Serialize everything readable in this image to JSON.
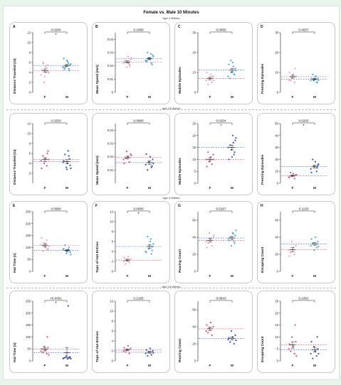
{
  "figure": {
    "title": "Female vs. Male 10 Minutes",
    "section_labels": [
      "Age 4 Weeks",
      "Age 24 Weeks",
      "Age 4 Weeks",
      "Age 24 Weeks"
    ],
    "colors": {
      "female": "#f29ab0",
      "male": "#4a9fd6",
      "female_dark": "#d6476b",
      "male_dark": "#3048a8",
      "mean_line_f": "#e8506f",
      "mean_line_m": "#3f6fd0"
    }
  },
  "chart_data": [
    {
      "type": "scatter",
      "panel": "A",
      "row": 0,
      "ylabel": "Distance Traveled (m)",
      "p": "0.0284",
      "star": true,
      "ylim": [
        0,
        12
      ],
      "yticks": [
        0,
        2,
        4,
        6,
        8,
        10,
        12
      ],
      "categories": [
        "F",
        "M"
      ],
      "series": [
        {
          "name": "F",
          "values": [
            3.5,
            4.2,
            4.8,
            5.1,
            2.0,
            6.0,
            4.5,
            3.9,
            5.5,
            4.0,
            3.2,
            5.8
          ]
        },
        {
          "name": "M",
          "values": [
            5.0,
            5.5,
            4.7,
            6.2,
            5.3,
            4.9,
            6.8,
            5.7,
            4.4,
            5.9,
            6.4,
            5.2,
            4.6,
            5.1
          ]
        }
      ]
    },
    {
      "type": "scatter",
      "panel": "B",
      "row": 0,
      "ylabel": "Mean Speed (m/s)",
      "p": "0.1058",
      "star": false,
      "ylim": [
        0,
        0.045
      ],
      "yticks": [
        0,
        0.01,
        0.02,
        0.03,
        0.04
      ],
      "categories": [
        "F",
        "M"
      ],
      "series": [
        {
          "name": "F",
          "values": [
            0.022,
            0.025,
            0.021,
            0.027,
            0.019,
            0.024,
            0.023,
            0.026,
            0.02,
            0.022
          ]
        },
        {
          "name": "M",
          "values": [
            0.024,
            0.028,
            0.022,
            0.026,
            0.025,
            0.03,
            0.023,
            0.027,
            0.021,
            0.029,
            0.025,
            0.026,
            0.024
          ]
        }
      ]
    },
    {
      "type": "scatter",
      "panel": "C",
      "row": 0,
      "ylabel": "Mobile Episodes",
      "p": "0.0959",
      "star": false,
      "ylim": [
        0,
        30
      ],
      "yticks": [
        0,
        10,
        20,
        30
      ],
      "categories": [
        "F",
        "M"
      ],
      "series": [
        {
          "name": "F",
          "values": [
            6,
            8,
            5,
            9,
            7,
            4,
            10,
            6,
            8
          ]
        },
        {
          "name": "M",
          "values": [
            8,
            12,
            9,
            15,
            10,
            7,
            14,
            11,
            9,
            13,
            10,
            16
          ]
        }
      ]
    },
    {
      "type": "scatter",
      "panel": "D",
      "row": 0,
      "ylabel": "Freezing Episodes",
      "p": "0.4637",
      "star": false,
      "ylim": [
        0,
        30
      ],
      "yticks": [
        0,
        10,
        20,
        30
      ],
      "categories": [
        "F",
        "M"
      ],
      "series": [
        {
          "name": "F",
          "values": [
            6,
            8,
            5,
            9,
            7,
            6,
            10,
            8,
            12
          ]
        },
        {
          "name": "M",
          "values": [
            6,
            7,
            5,
            8,
            6,
            9,
            7,
            6,
            5,
            8,
            7,
            6
          ]
        }
      ]
    },
    {
      "type": "scatter",
      "panel": "",
      "row": 1,
      "ylabel": "Distance Traveled (m)",
      "p": "0.3250",
      "star": false,
      "ylim": [
        0,
        12
      ],
      "yticks": [
        2,
        4,
        6,
        8,
        10,
        12
      ],
      "categories": [
        "F",
        "M"
      ],
      "series": [
        {
          "name": "F",
          "values": [
            4.5,
            6.5,
            3.5,
            5.0,
            4.0,
            5.5,
            3.0,
            4.8,
            6.0
          ]
        },
        {
          "name": "M",
          "values": [
            4.2,
            3.6,
            5.5,
            4.0,
            3.2,
            5.8,
            4.5,
            3.0,
            4.9,
            6.5,
            2.8
          ]
        }
      ]
    },
    {
      "type": "scatter",
      "panel": "",
      "row": 1,
      "ylabel": "Mean Speed (m/s)",
      "p": "0.0880",
      "star": false,
      "ylim": [
        0,
        0.045
      ],
      "yticks": [
        0.01,
        0.02,
        0.03,
        0.04
      ],
      "categories": [
        "F",
        "M"
      ],
      "series": [
        {
          "name": "F",
          "values": [
            0.018,
            0.022,
            0.016,
            0.02,
            0.024,
            0.019,
            0.015,
            0.021
          ]
        },
        {
          "name": "M",
          "values": [
            0.014,
            0.018,
            0.012,
            0.02,
            0.016,
            0.01,
            0.022,
            0.015,
            0.013
          ]
        }
      ]
    },
    {
      "type": "scatter",
      "panel": "",
      "row": 1,
      "ylabel": "Mobile Episodes",
      "p": "0.0254",
      "star": true,
      "ylim": [
        0,
        25
      ],
      "yticks": [
        0,
        5,
        10,
        15,
        20,
        25
      ],
      "categories": [
        "F",
        "M"
      ],
      "series": [
        {
          "name": "F",
          "values": [
            10,
            12,
            8,
            11,
            9,
            13,
            7,
            10
          ]
        },
        {
          "name": "M",
          "values": [
            15,
            18,
            12,
            20,
            14,
            16,
            10,
            19,
            13,
            17,
            11
          ]
        }
      ]
    },
    {
      "type": "scatter",
      "panel": "",
      "row": 1,
      "ylabel": "Freezing Episodes",
      "p": "0.0205",
      "star": true,
      "ylim": [
        0,
        50
      ],
      "yticks": [
        0,
        10,
        20,
        30,
        40,
        50
      ],
      "categories": [
        "F",
        "M"
      ],
      "series": [
        {
          "name": "F",
          "values": [
            5,
            7,
            4,
            8,
            6,
            9,
            5,
            7
          ]
        },
        {
          "name": "M",
          "values": [
            12,
            15,
            10,
            18,
            14,
            20,
            9,
            16,
            13
          ]
        }
      ]
    },
    {
      "type": "scatter",
      "panel": "E",
      "row": 2,
      "ylabel": "Hut Time (s)",
      "p": "0.0990",
      "star": false,
      "ylim": [
        0,
        250
      ],
      "yticks": [
        0,
        50,
        100,
        150,
        200,
        250
      ],
      "categories": [
        "F",
        "M"
      ],
      "series": [
        {
          "name": "F",
          "values": [
            110,
            95,
            130,
            100,
            120,
            85,
            140,
            105,
            90,
            115
          ]
        },
        {
          "name": "M",
          "values": [
            90,
            80,
            100,
            85,
            75,
            110,
            95,
            70,
            88,
            92,
            82
          ]
        }
      ]
    },
    {
      "type": "scatter",
      "panel": "F",
      "row": 2,
      "ylabel": "Tops of Hut Entries",
      "p": "0.0066",
      "star": true,
      "ylim": [
        0,
        12
      ],
      "yticks": [
        0,
        2,
        4,
        6,
        8,
        10,
        12
      ],
      "categories": [
        "F",
        "M"
      ],
      "series": [
        {
          "name": "F",
          "values": [
            2.0,
            2.5,
            1.8,
            3.0,
            2.2,
            1.5,
            2.8
          ]
        },
        {
          "name": "M",
          "values": [
            4.0,
            5.0,
            3.5,
            6.0,
            4.5,
            7.0,
            3.8,
            5.5,
            4.2,
            6.5
          ]
        }
      ]
    },
    {
      "type": "scatter",
      "panel": "G",
      "row": 2,
      "ylabel": "Rearing Count",
      "p": "0.5267",
      "star": false,
      "ylim": [
        0,
        70
      ],
      "yticks": [
        0,
        20,
        40,
        60
      ],
      "categories": [
        "F",
        "M"
      ],
      "series": [
        {
          "name": "F",
          "values": [
            35,
            40,
            30,
            38,
            45,
            33,
            28,
            42
          ]
        },
        {
          "name": "M",
          "values": [
            38,
            42,
            35,
            45,
            30,
            40,
            36,
            48,
            33,
            44
          ]
        }
      ]
    },
    {
      "type": "scatter",
      "panel": "H",
      "row": 2,
      "ylabel": "Escaping Count",
      "p": "0.1193",
      "star": false,
      "ylim": [
        0,
        70
      ],
      "yticks": [
        0,
        20,
        40,
        60
      ],
      "categories": [
        "F",
        "M"
      ],
      "series": [
        {
          "name": "F",
          "values": [
            25,
            30,
            20,
            28,
            35,
            22,
            18
          ]
        },
        {
          "name": "M",
          "values": [
            30,
            35,
            28,
            40,
            25,
            33,
            38,
            29,
            32
          ]
        }
      ]
    },
    {
      "type": "scatter",
      "panel": "",
      "row": 3,
      "ylabel": "Hut Time (s)",
      "p": "<0.0001",
      "star": true,
      "ylim": [
        0,
        250
      ],
      "yticks": [
        0,
        50,
        100,
        150,
        200,
        250
      ],
      "categories": [
        "F",
        "M"
      ],
      "series": [
        {
          "name": "F",
          "values": [
            40,
            55,
            30,
            45,
            60,
            35,
            50,
            25,
            100
          ]
        },
        {
          "name": "M",
          "values": [
            10,
            15,
            12,
            8,
            20,
            14,
            11,
            9,
            16,
            230
          ]
        }
      ]
    },
    {
      "type": "scatter",
      "panel": "",
      "row": 3,
      "ylabel": "Tops of Hut Entries",
      "p": "0.2185",
      "star": false,
      "ylim": [
        0,
        12
      ],
      "yticks": [
        0,
        2,
        4,
        6,
        8,
        10,
        12
      ],
      "categories": [
        "F",
        "M"
      ],
      "series": [
        {
          "name": "F",
          "values": [
            2.0,
            2.5,
            1.5,
            3.0,
            2.2,
            1.8,
            2.6
          ]
        },
        {
          "name": "M",
          "values": [
            1.5,
            2.0,
            1.2,
            2.5,
            1.8,
            1.0,
            2.2,
            1.6
          ]
        }
      ]
    },
    {
      "type": "scatter",
      "panel": "",
      "row": 3,
      "ylabel": "Rearing Count",
      "p": "0.0643",
      "star": false,
      "ylim": [
        0,
        70
      ],
      "yticks": [
        0,
        20,
        40,
        60
      ],
      "categories": [
        "F",
        "M"
      ],
      "series": [
        {
          "name": "F",
          "values": [
            35,
            40,
            30,
            45,
            38,
            33,
            42
          ]
        },
        {
          "name": "M",
          "values": [
            25,
            30,
            20,
            28,
            35,
            22,
            27,
            24
          ]
        }
      ]
    },
    {
      "type": "scatter",
      "panel": "",
      "row": 3,
      "ylabel": "Escaping Count",
      "p": "0.1952",
      "star": false,
      "ylim": [
        0,
        25
      ],
      "yticks": [
        0,
        5,
        10,
        15,
        20,
        25
      ],
      "categories": [
        "F",
        "M"
      ],
      "series": [
        {
          "name": "F",
          "values": [
            5,
            8,
            3,
            6,
            10,
            4,
            7,
            2,
            15
          ]
        },
        {
          "name": "M",
          "values": [
            3,
            5,
            2,
            4,
            6,
            1,
            8,
            3,
            10
          ]
        }
      ]
    }
  ]
}
